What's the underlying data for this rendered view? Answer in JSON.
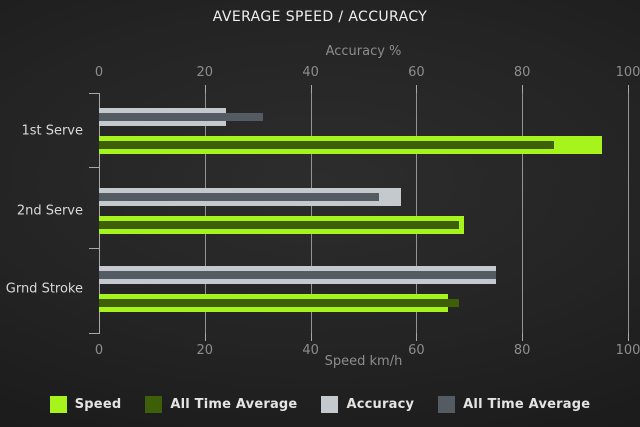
{
  "title": "AVERAGE SPEED / ACCURACY",
  "colors": {
    "speed": "#a7f41c",
    "speed_all_time": "#3c5f08",
    "accuracy": "#c3c9cc",
    "accuracy_all_time": "#555b63",
    "grid": "#949494",
    "axis_text": "#8d8d8d",
    "category_text": "#d8d8d8",
    "title_text": "#efefef",
    "legend_text": "#e4e4e4"
  },
  "axes": {
    "top": {
      "label": "Accuracy %",
      "ticks": [
        0,
        20,
        40,
        60,
        80,
        100
      ],
      "range": [
        0,
        100
      ]
    },
    "bottom": {
      "label": "Speed km/h",
      "ticks": [
        0,
        20,
        40,
        60,
        80,
        100
      ],
      "range": [
        0,
        100
      ]
    }
  },
  "chart_data": {
    "type": "bar",
    "orientation": "horizontal",
    "title": "AVERAGE SPEED / ACCURACY",
    "categories": [
      "1st Serve",
      "2nd Serve",
      "Grnd Stroke"
    ],
    "series": [
      {
        "name": "Speed",
        "key": "speed",
        "axis": "bottom",
        "values": [
          95,
          69,
          66
        ]
      },
      {
        "name": "All Time Average",
        "key": "speed_all_time",
        "axis": "bottom",
        "values": [
          86,
          68,
          68
        ]
      },
      {
        "name": "Accuracy",
        "key": "accuracy",
        "axis": "top",
        "values": [
          24,
          57,
          75
        ]
      },
      {
        "name": "All Time Average",
        "key": "accuracy_all_time",
        "axis": "top",
        "values": [
          31,
          53,
          75
        ]
      }
    ],
    "xlim": [
      0,
      100
    ],
    "grid": true,
    "legend_position": "bottom"
  },
  "legend": [
    {
      "label": "Speed",
      "color_key": "speed"
    },
    {
      "label": "All Time Average",
      "color_key": "speed_all_time"
    },
    {
      "label": "Accuracy",
      "color_key": "accuracy"
    },
    {
      "label": "All Time Average",
      "color_key": "accuracy_all_time"
    }
  ]
}
